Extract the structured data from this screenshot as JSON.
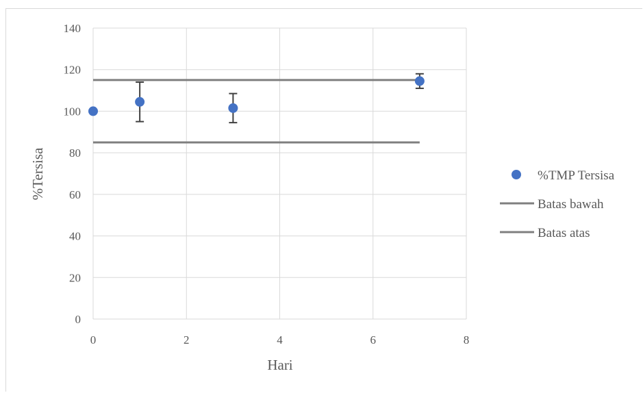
{
  "chart_data": {
    "type": "scatter",
    "title": "",
    "xlabel": "Hari",
    "ylabel": "%Tersisa",
    "xlim": [
      0,
      8
    ],
    "ylim": [
      0,
      140
    ],
    "xticks": [
      0,
      2,
      4,
      6,
      8
    ],
    "yticks": [
      0,
      20,
      40,
      60,
      80,
      100,
      120,
      140
    ],
    "grid": true,
    "legend_position": "right",
    "series": [
      {
        "name": "%TMP Tersisa",
        "kind": "scatter",
        "color": "#4472c4",
        "points": [
          {
            "x": 0,
            "y": 100,
            "err": 0
          },
          {
            "x": 1,
            "y": 104.5,
            "err": 9.5
          },
          {
            "x": 3,
            "y": 101.5,
            "err": 7
          },
          {
            "x": 7,
            "y": 114.5,
            "err": 3.5
          }
        ]
      },
      {
        "name": "Batas bawah",
        "kind": "line",
        "color": "#7f7f7f",
        "points": [
          {
            "x": 0,
            "y": 85
          },
          {
            "x": 7,
            "y": 85
          }
        ]
      },
      {
        "name": "Batas atas",
        "kind": "line",
        "color": "#7f7f7f",
        "points": [
          {
            "x": 0,
            "y": 115
          },
          {
            "x": 7,
            "y": 115
          }
        ]
      }
    ]
  }
}
